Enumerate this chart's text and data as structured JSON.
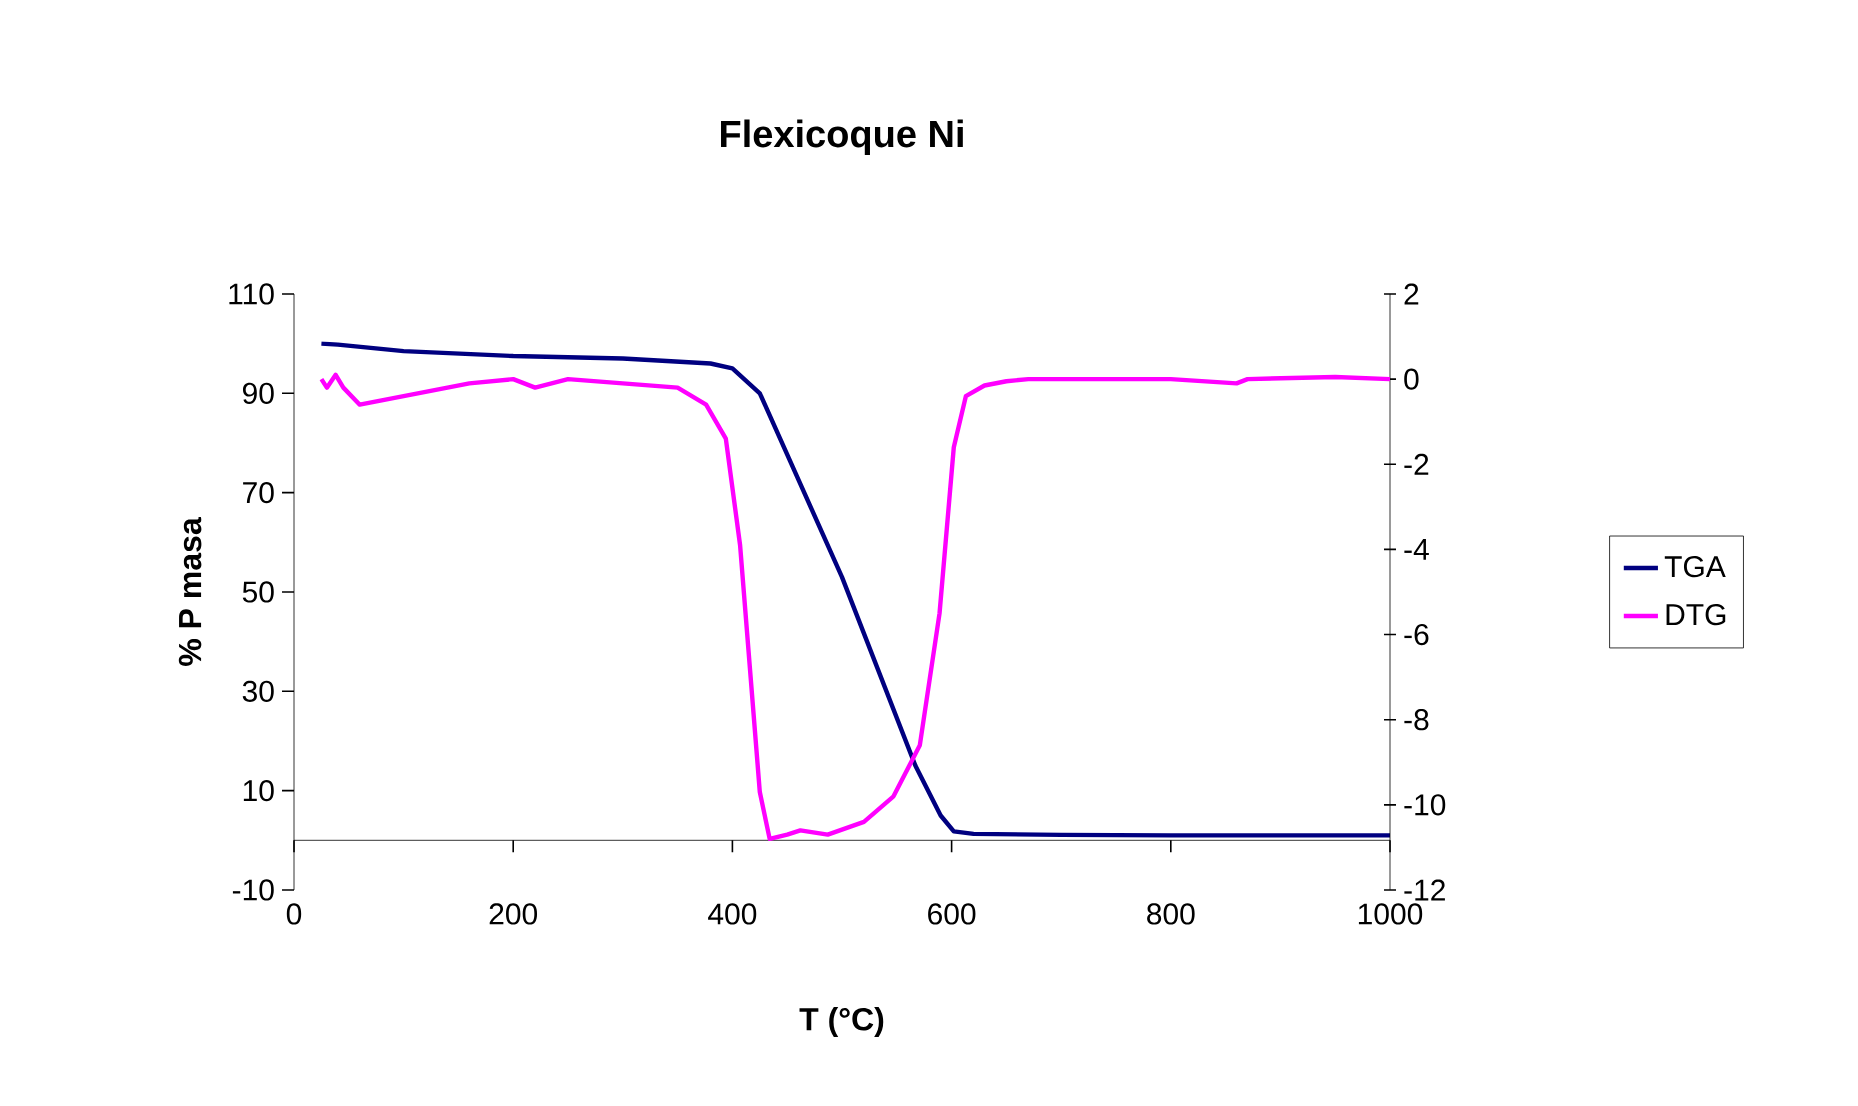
{
  "chart_data": {
    "type": "line",
    "title": "Flexicoque Ni",
    "xlabel": "T (°C)",
    "ylabel": "% P masa",
    "xlim": [
      0,
      1000
    ],
    "xticks": [
      0,
      200,
      400,
      600,
      800,
      1000
    ],
    "ylim": [
      -10,
      110
    ],
    "yticks": [
      -10,
      10,
      30,
      50,
      70,
      90,
      110
    ],
    "y2lim": [
      -12,
      2
    ],
    "y2ticks": [
      -12,
      -10,
      -8,
      -6,
      -4,
      -2,
      0,
      2
    ],
    "grid": false,
    "legend": "right",
    "marker": "none",
    "line_style": "solid",
    "series": [
      {
        "name": "TGA",
        "color": "#000080",
        "x": [
          25,
          40,
          100,
          200,
          300,
          380,
          400,
          410,
          425,
          500,
          567,
          590,
          602,
          620,
          700,
          800,
          900,
          1000
        ],
        "values": [
          100,
          99.8,
          98.5,
          97.5,
          97,
          96,
          95,
          93,
          90,
          53,
          15,
          5,
          1.8,
          1.3,
          1.1,
          1,
          1,
          1
        ]
      },
      {
        "name": "DTG",
        "color": "#ff00ff",
        "axis": "y2",
        "x": [
          25,
          30,
          38,
          45,
          60,
          80,
          120,
          160,
          200,
          220,
          250,
          300,
          350,
          376,
          394,
          407,
          425,
          434,
          450,
          462,
          487,
          520,
          547,
          571,
          589,
          602,
          613,
          630,
          650,
          670,
          800,
          860,
          870,
          950,
          1000
        ],
        "values": [
          0,
          -0.2,
          0.1,
          -0.2,
          -0.6,
          -0.5,
          -0.3,
          -0.1,
          0,
          -0.2,
          0,
          -0.1,
          -0.2,
          -0.6,
          -1.4,
          -3.9,
          -9.7,
          -10.8,
          -10.7,
          -10.6,
          -10.7,
          -10.4,
          -9.8,
          -8.6,
          -5.5,
          -1.6,
          -0.4,
          -0.15,
          -0.05,
          0,
          0,
          -0.1,
          0,
          0.05,
          0
        ]
      }
    ]
  }
}
